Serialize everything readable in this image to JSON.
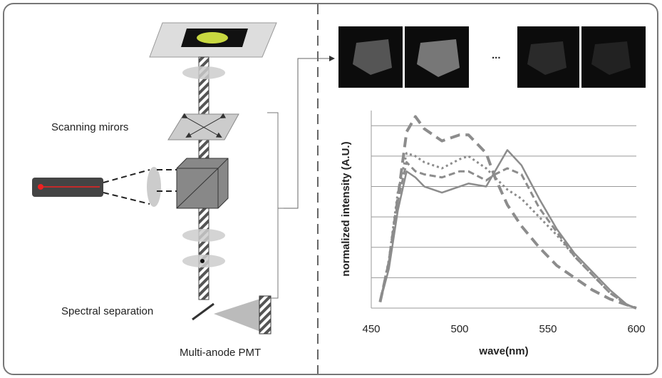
{
  "diagram": {
    "labels": {
      "scanning": "Scanning mirors",
      "spectral": "Spectral separation",
      "pmt": "Multi-anode PMT",
      "ellipsis": "..."
    }
  },
  "chart_data": {
    "type": "line",
    "xlabel": "wave(nm)",
    "ylabel": "normalized intensity (A.U.)",
    "x": [
      455,
      460,
      465,
      470,
      475,
      480,
      490,
      500,
      505,
      515,
      520,
      527,
      535,
      545,
      555,
      565,
      575,
      585,
      595,
      600
    ],
    "series": [
      {
        "color": "#8c8c8c",
        "dash": "14,8",
        "width": 4,
        "values": [
          0.2,
          1.5,
          3.6,
          5.8,
          6.3,
          5.9,
          5.5,
          5.7,
          5.7,
          5.1,
          4.3,
          3.4,
          2.7,
          2.0,
          1.4,
          1.0,
          0.6,
          0.3,
          0.1,
          0
        ]
      },
      {
        "color": "#8c8c8c",
        "dash": "none",
        "width": 2.5,
        "values": [
          0.2,
          1.3,
          3.2,
          4.5,
          4.3,
          4.0,
          3.8,
          4.0,
          4.1,
          4.0,
          4.5,
          5.2,
          4.7,
          3.6,
          2.6,
          1.8,
          1.2,
          0.6,
          0.1,
          0
        ]
      },
      {
        "color": "#8c8c8c",
        "dash": "3,4",
        "width": 3,
        "values": [
          0.2,
          1.6,
          3.8,
          5.1,
          5.0,
          4.8,
          4.6,
          4.9,
          5.0,
          4.6,
          4.3,
          3.9,
          3.6,
          3.0,
          2.4,
          1.7,
          1.1,
          0.5,
          0.1,
          0
        ]
      },
      {
        "color": "#8c8c8c",
        "dash": "9,5",
        "width": 3,
        "values": [
          0.2,
          1.5,
          3.5,
          4.8,
          4.5,
          4.4,
          4.3,
          4.5,
          4.5,
          4.2,
          4.4,
          4.6,
          4.4,
          3.3,
          2.5,
          1.7,
          1.1,
          0.5,
          0.1,
          0
        ]
      }
    ],
    "xlim": [
      450,
      600
    ],
    "xticks": [
      450,
      500,
      550,
      600
    ],
    "ylim": [
      0,
      6.5
    ],
    "ygrid": [
      1,
      2,
      3,
      4,
      5,
      6
    ],
    "grid": true
  }
}
